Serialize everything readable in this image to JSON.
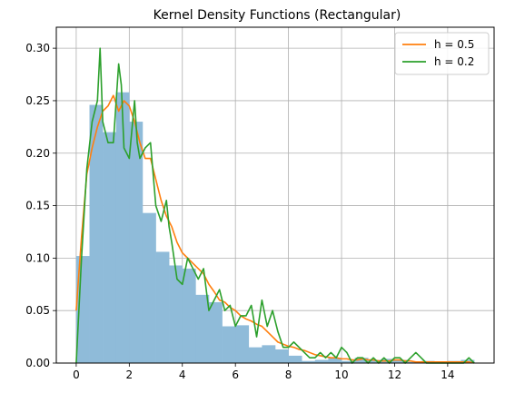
{
  "chart_data": {
    "type": "histogram+line",
    "title": "Kernel Density Functions (Rectangular)",
    "xlabel": "",
    "ylabel": "",
    "xlim": [
      -0.75,
      15.75
    ],
    "ylim": [
      0,
      0.32
    ],
    "xticks": [
      0,
      2,
      4,
      6,
      8,
      10,
      12,
      14
    ],
    "yticks": [
      0.0,
      0.05,
      0.1,
      0.15,
      0.2,
      0.25,
      0.3
    ],
    "grid": true,
    "legend_position": "top-right",
    "colors": {
      "histogram": "#8fbbd9",
      "h05": "#ff7f0e",
      "h02": "#2ca02c",
      "grid": "#b0b0b0"
    },
    "histogram": {
      "bin_width": 0.5,
      "bin_edges_start": 0,
      "heights": [
        0.102,
        0.246,
        0.22,
        0.258,
        0.23,
        0.143,
        0.106,
        0.093,
        0.09,
        0.065,
        0.058,
        0.035,
        0.036,
        0.015,
        0.017,
        0.013,
        0.007,
        0.002,
        0.003,
        0.005,
        0.002,
        0.005,
        0.003,
        0.004,
        0.003,
        0.001,
        0.002,
        0.001,
        0.002,
        0.003
      ]
    },
    "series": [
      {
        "name": "h = 0.5",
        "x": [
          0,
          0.2,
          0.4,
          0.6,
          0.8,
          1.0,
          1.2,
          1.4,
          1.6,
          1.8,
          2.0,
          2.2,
          2.4,
          2.6,
          2.8,
          3.0,
          3.2,
          3.4,
          3.6,
          3.8,
          4.0,
          4.2,
          4.4,
          4.6,
          4.8,
          5.0,
          5.2,
          5.4,
          5.6,
          5.8,
          6.0,
          6.2,
          6.4,
          6.6,
          6.8,
          7.0,
          7.2,
          7.4,
          7.6,
          7.8,
          8.0,
          8.2,
          8.4,
          8.6,
          8.8,
          9.0,
          9.2,
          9.4,
          9.6,
          9.8,
          10.0,
          10.2,
          10.4,
          10.6,
          10.8,
          11.0,
          11.2,
          11.4,
          11.6,
          11.8,
          12.0,
          12.2,
          12.4,
          12.6,
          12.8,
          13.0,
          13.2,
          13.4,
          13.6,
          13.8,
          14.0,
          14.2,
          14.4,
          14.6,
          14.8,
          15.0
        ],
        "y": [
          0.05,
          0.12,
          0.18,
          0.205,
          0.225,
          0.24,
          0.245,
          0.255,
          0.24,
          0.25,
          0.245,
          0.23,
          0.21,
          0.195,
          0.195,
          0.175,
          0.155,
          0.14,
          0.13,
          0.115,
          0.105,
          0.1,
          0.095,
          0.09,
          0.085,
          0.075,
          0.068,
          0.06,
          0.058,
          0.053,
          0.05,
          0.045,
          0.042,
          0.04,
          0.037,
          0.035,
          0.03,
          0.025,
          0.02,
          0.018,
          0.016,
          0.015,
          0.013,
          0.012,
          0.01,
          0.008,
          0.007,
          0.006,
          0.005,
          0.005,
          0.004,
          0.004,
          0.003,
          0.003,
          0.004,
          0.003,
          0.003,
          0.002,
          0.002,
          0.002,
          0.003,
          0.003,
          0.002,
          0.002,
          0.001,
          0.001,
          0.001,
          0.001,
          0.001,
          0.001,
          0.001,
          0.001,
          0.001,
          0.001,
          0.001,
          0.0
        ]
      },
      {
        "name": "h = 0.2",
        "x": [
          0,
          0.2,
          0.4,
          0.6,
          0.8,
          0.9,
          1.0,
          1.2,
          1.4,
          1.6,
          1.7,
          1.8,
          2.0,
          2.2,
          2.3,
          2.4,
          2.6,
          2.8,
          3.0,
          3.2,
          3.4,
          3.5,
          3.6,
          3.8,
          4.0,
          4.2,
          4.4,
          4.6,
          4.8,
          5.0,
          5.2,
          5.4,
          5.6,
          5.8,
          6.0,
          6.2,
          6.4,
          6.6,
          6.8,
          7.0,
          7.2,
          7.4,
          7.6,
          7.8,
          8.0,
          8.2,
          8.4,
          8.6,
          8.8,
          9.0,
          9.2,
          9.4,
          9.6,
          9.8,
          10.0,
          10.2,
          10.4,
          10.6,
          10.8,
          11.0,
          11.2,
          11.4,
          11.6,
          11.8,
          12.0,
          12.2,
          12.4,
          12.6,
          12.8,
          13.0,
          13.2,
          13.4,
          13.6,
          13.8,
          14.0,
          14.2,
          14.4,
          14.6,
          14.8,
          15.0
        ],
        "y": [
          0.0,
          0.1,
          0.185,
          0.23,
          0.25,
          0.3,
          0.23,
          0.21,
          0.21,
          0.285,
          0.265,
          0.205,
          0.195,
          0.25,
          0.21,
          0.195,
          0.205,
          0.21,
          0.15,
          0.135,
          0.155,
          0.13,
          0.115,
          0.08,
          0.075,
          0.1,
          0.09,
          0.08,
          0.09,
          0.05,
          0.06,
          0.07,
          0.05,
          0.055,
          0.035,
          0.045,
          0.045,
          0.055,
          0.025,
          0.06,
          0.035,
          0.05,
          0.03,
          0.015,
          0.015,
          0.02,
          0.015,
          0.01,
          0.005,
          0.005,
          0.01,
          0.005,
          0.01,
          0.005,
          0.015,
          0.01,
          0.0,
          0.005,
          0.005,
          0.0,
          0.005,
          0.0,
          0.005,
          0.0,
          0.005,
          0.005,
          0.0,
          0.005,
          0.01,
          0.005,
          0.0,
          0.0,
          0.0,
          0.0,
          0.0,
          0.0,
          0.0,
          0.0,
          0.005,
          0.0
        ]
      }
    ]
  }
}
